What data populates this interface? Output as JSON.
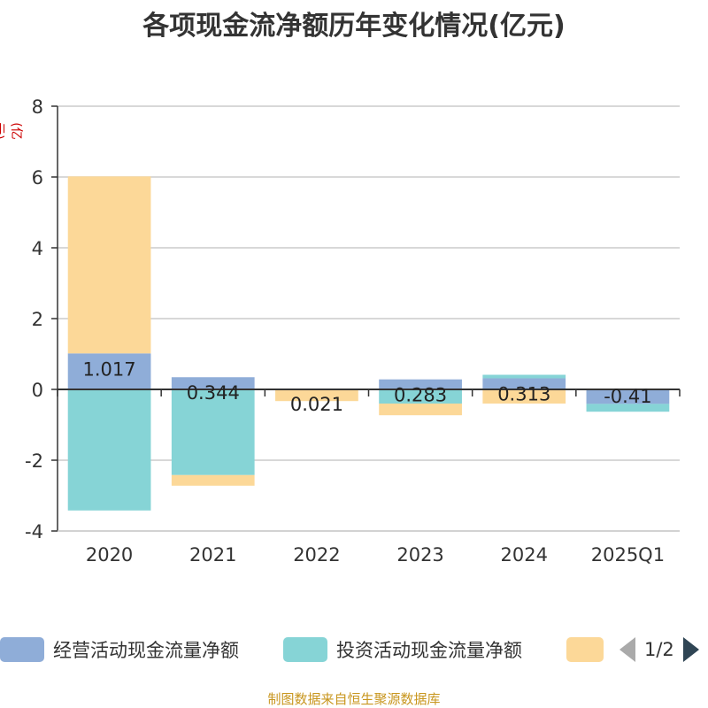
{
  "title": "各项现金流净额历年变化情况(亿元)",
  "unit_label": "(亿元)",
  "source": "制图数据来自恒生聚源数据库",
  "pager": {
    "text": "1/2"
  },
  "colors": {
    "operating": "#8fadd8",
    "investing": "#86d4d6",
    "financing": "#fcd898"
  },
  "chart_data": {
    "type": "bar",
    "stacked": true,
    "categories": [
      "2020",
      "2021",
      "2022",
      "2023",
      "2024",
      "2025Q1"
    ],
    "ylim": [
      -4,
      8
    ],
    "yticks": [
      8,
      6,
      4,
      2,
      0,
      -2,
      -4
    ],
    "grid": true,
    "legend_position": "bottom",
    "series": [
      {
        "name": "经营活动现金流量净额",
        "values": [
          1.017,
          0.344,
          0.021,
          0.283,
          0.313,
          -0.41
        ]
      },
      {
        "name": "投资活动现金流量净额",
        "values": [
          -3.42,
          -2.42,
          0.0,
          -0.4,
          0.1,
          -0.22
        ]
      },
      {
        "name": "",
        "values": [
          5.0,
          -0.3,
          -0.33,
          -0.33,
          -0.4,
          0.0
        ]
      }
    ],
    "data_labels": [
      "1.017",
      "0.344",
      "0.021",
      "0.283",
      "0.313",
      "-0.41"
    ]
  }
}
